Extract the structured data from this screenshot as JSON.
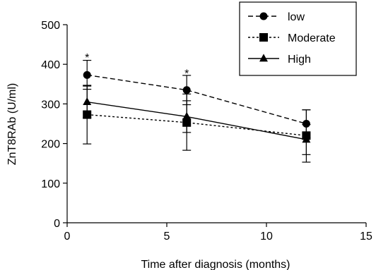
{
  "chart_data": {
    "type": "line",
    "title": "",
    "xlabel": "Time after diagnosis (months)",
    "ylabel": "ZnT8RAb (U/ml)",
    "xlim": [
      0,
      15
    ],
    "ylim": [
      0,
      500
    ],
    "xticks": [
      0,
      5,
      10,
      15
    ],
    "yticks": [
      0,
      100,
      200,
      300,
      400,
      500
    ],
    "grid": false,
    "legend_position": "top-right",
    "legend_boxed": true,
    "series": [
      {
        "name": "low",
        "marker": "circle",
        "line_style": "dashed",
        "color": "#000000",
        "x": [
          1,
          6,
          12
        ],
        "y": [
          373,
          335,
          250
        ],
        "err_upper": [
          410,
          372,
          285
        ],
        "err_lower": [
          337,
          298,
          215
        ]
      },
      {
        "name": "Moderate",
        "marker": "square",
        "line_style": "dotted",
        "color": "#000000",
        "x": [
          1,
          6,
          12
        ],
        "y": [
          273,
          253,
          220
        ],
        "err_upper": [
          347,
          325,
          285
        ],
        "err_lower": [
          199,
          183,
          153
        ]
      },
      {
        "name": "High",
        "marker": "triangle",
        "line_style": "solid",
        "color": "#000000",
        "x": [
          1,
          6,
          12
        ],
        "y": [
          305,
          268,
          210
        ],
        "err_upper": [
          345,
          308,
          248
        ],
        "err_lower": [
          265,
          228,
          172
        ]
      }
    ],
    "annotations": [
      {
        "text": "*",
        "x": 1,
        "y": 425
      },
      {
        "text": "*",
        "x": 6,
        "y": 385
      }
    ]
  }
}
